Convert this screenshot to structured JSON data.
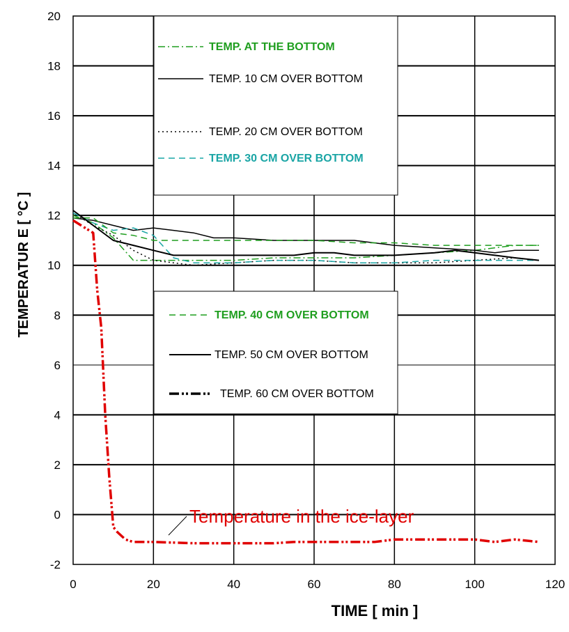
{
  "chart_data": {
    "type": "line",
    "xlabel": "TIME [ min ]",
    "ylabel": "TEMPERATUR E [ °C ]",
    "xlim": [
      0,
      120
    ],
    "ylim": [
      -2,
      20
    ],
    "xticks": [
      "0",
      "20",
      "40",
      "60",
      "80",
      "100",
      "120"
    ],
    "yticks": [
      "-2",
      "0",
      "2",
      "4",
      "6",
      "8",
      "10",
      "12",
      "14",
      "16",
      "18",
      "20"
    ],
    "grid": true,
    "annotation": "Temperature in the ice-layer",
    "legend_top": [
      "TEMP.  AT THE BOTTOM",
      "TEMP. 10 CM OVER BOTTOM",
      "TEMP. 20 CM OVER BOTTOM",
      "TEMP. 30 CM OVER BOTTOM"
    ],
    "legend_bottom": [
      "TEMP. 40 CM OVER BOTTOM",
      "TEMP. 50 CM OVER BOTTOM",
      "TEMP. 60 CM OVER BOTTOM"
    ],
    "series": [
      {
        "name": "TEMP.  AT THE BOTTOM",
        "color": "#1f9e1f",
        "style": "dashdot",
        "x": [
          0,
          5,
          10,
          15,
          20,
          30,
          40,
          50,
          60,
          70,
          80,
          90,
          100,
          110,
          116
        ],
        "y": [
          12.0,
          11.7,
          11.1,
          10.2,
          10.2,
          10.2,
          10.2,
          10.3,
          10.3,
          10.3,
          10.4,
          10.5,
          10.6,
          10.8,
          10.8
        ]
      },
      {
        "name": "TEMP. 10 CM OVER BOTTOM",
        "color": "#000000",
        "style": "solid",
        "x": [
          0,
          5,
          10,
          15,
          20,
          25,
          30,
          35,
          40,
          50,
          60,
          70,
          80,
          90,
          100,
          105,
          110,
          116
        ],
        "y": [
          11.9,
          11.8,
          11.6,
          11.4,
          11.5,
          11.4,
          11.3,
          11.1,
          11.1,
          11.0,
          11.0,
          11.0,
          10.8,
          10.7,
          10.6,
          10.5,
          10.6,
          10.6
        ]
      },
      {
        "name": "TEMP. 20 CM OVER BOTTOM",
        "color": "#000000",
        "style": "dotted",
        "x": [
          0,
          5,
          10,
          15,
          20,
          25,
          30,
          40,
          50,
          60,
          70,
          80,
          90,
          100,
          110,
          116
        ],
        "y": [
          12.1,
          11.6,
          11.2,
          10.6,
          10.2,
          10.1,
          10.0,
          10.1,
          10.2,
          10.2,
          10.1,
          10.1,
          10.1,
          10.2,
          10.3,
          10.2
        ]
      },
      {
        "name": "TEMP. 30 CM OVER BOTTOM",
        "color": "#1aa5a5",
        "style": "dashed",
        "x": [
          0,
          5,
          10,
          15,
          20,
          25,
          30,
          40,
          50,
          60,
          70,
          80,
          90,
          100,
          110,
          116
        ],
        "y": [
          12.1,
          11.7,
          11.4,
          11.5,
          11.2,
          10.3,
          10.1,
          10.1,
          10.2,
          10.2,
          10.1,
          10.1,
          10.2,
          10.2,
          10.2,
          10.2
        ]
      },
      {
        "name": "TEMP. 40 CM OVER BOTTOM",
        "color": "#1f9e1f",
        "style": "dashed",
        "x": [
          0,
          5,
          10,
          15,
          20,
          25,
          30,
          40,
          50,
          60,
          70,
          80,
          90,
          100,
          110,
          116
        ],
        "y": [
          11.9,
          11.9,
          11.3,
          11.2,
          11.0,
          11.0,
          11.0,
          11.0,
          11.0,
          11.0,
          10.9,
          10.9,
          10.8,
          10.8,
          10.8,
          10.8
        ]
      },
      {
        "name": "TEMP. 50 CM OVER BOTTOM",
        "color": "#000000",
        "style": "solid",
        "x": [
          0,
          5,
          10,
          15,
          20,
          25,
          30,
          40,
          50,
          55,
          60,
          65,
          70,
          80,
          90,
          95,
          100,
          110,
          116
        ],
        "y": [
          12.2,
          11.6,
          11.0,
          10.8,
          10.6,
          10.4,
          10.4,
          10.4,
          10.4,
          10.4,
          10.5,
          10.5,
          10.4,
          10.4,
          10.5,
          10.6,
          10.5,
          10.3,
          10.2
        ]
      },
      {
        "name": "TEMP. 60 CM OVER BOTTOM",
        "color": "#e00000",
        "style": "dashdotdot",
        "x": [
          0,
          3,
          5,
          6,
          7,
          8,
          9,
          10,
          11,
          13,
          15,
          20,
          30,
          40,
          50,
          55,
          60,
          70,
          75,
          80,
          90,
          100,
          105,
          110,
          116
        ],
        "y": [
          11.8,
          11.5,
          11.3,
          9.0,
          7.5,
          4.0,
          1.5,
          -0.5,
          -0.7,
          -1.0,
          -1.1,
          -1.1,
          -1.15,
          -1.15,
          -1.15,
          -1.1,
          -1.1,
          -1.1,
          -1.1,
          -1.0,
          -1.0,
          -1.0,
          -1.1,
          -1.0,
          -1.1
        ]
      }
    ]
  }
}
